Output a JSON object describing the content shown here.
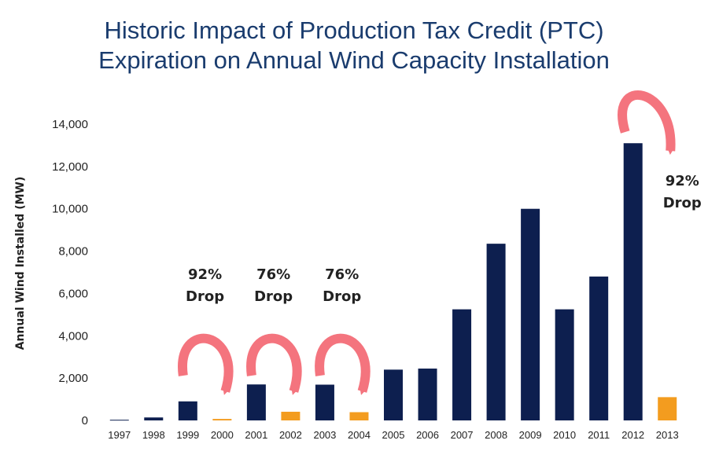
{
  "chart_data": {
    "type": "bar",
    "title_line1": "Historic Impact of Production Tax Credit (PTC)",
    "title_line2": "Expiration on Annual Wind Capacity Installation",
    "ylabel": "Annual Wind Installed (MW)",
    "xlabel": "",
    "ylim": [
      0,
      14000
    ],
    "yticks": [
      "0",
      "2,000",
      "4,000",
      "6,000",
      "8,000",
      "10,000",
      "12,000",
      "14,000"
    ],
    "grid": false,
    "categories": [
      "1997",
      "1998",
      "1999",
      "2000",
      "2001",
      "2002",
      "2003",
      "2004",
      "2005",
      "2006",
      "2007",
      "2008",
      "2009",
      "2010",
      "2011",
      "2012",
      "2013"
    ],
    "values": [
      30,
      140,
      900,
      70,
      1700,
      410,
      1690,
      390,
      2400,
      2450,
      5250,
      8350,
      10000,
      5250,
      6800,
      13100,
      1100
    ],
    "bar_colors": [
      "#0d1f4f",
      "#0d1f4f",
      "#0d1f4f",
      "#f39c1f",
      "#0d1f4f",
      "#f39c1f",
      "#0d1f4f",
      "#f39c1f",
      "#0d1f4f",
      "#0d1f4f",
      "#0d1f4f",
      "#0d1f4f",
      "#0d1f4f",
      "#0d1f4f",
      "#0d1f4f",
      "#0d1f4f",
      "#f39c1f"
    ],
    "colors": {
      "normal": "#0d1f4f",
      "expiration": "#f39c1f",
      "arrow": "#f4747e"
    },
    "annotations": [
      {
        "pct": "92%",
        "word": "Drop",
        "from": "1999",
        "to": "2000"
      },
      {
        "pct": "76%",
        "word": "Drop",
        "from": "2001",
        "to": "2002"
      },
      {
        "pct": "76%",
        "word": "Drop",
        "from": "2003",
        "to": "2004"
      },
      {
        "pct": "92%",
        "word": "Drop",
        "from": "2012",
        "to": "2013"
      }
    ]
  }
}
